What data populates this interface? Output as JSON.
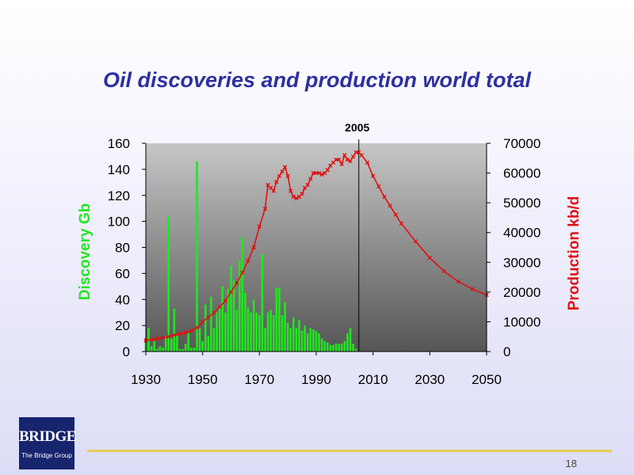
{
  "slide": {
    "title": "Oil discoveries and production world total",
    "page_number": "18",
    "logo_text": "BRIDGE",
    "logo_subtext": "The Bridge Group"
  },
  "colors": {
    "discovery": "#22e622",
    "production": "#e01010",
    "title": "#2e30a0",
    "footer_line": "#e5cc54",
    "plot_top": "#c6c6c6",
    "plot_bottom": "#555555"
  },
  "chart_data": {
    "type": "bar+line",
    "title": "",
    "xlabel": "",
    "xlim": [
      1930,
      2050
    ],
    "x_ticks": [
      1930,
      1950,
      1970,
      1990,
      2010,
      2030,
      2050
    ],
    "marker": {
      "x": 2005,
      "label": "2005"
    },
    "y_left": {
      "label": "Discovery Gb",
      "ylim": [
        0,
        160
      ],
      "ticks": [
        0,
        20,
        40,
        60,
        80,
        100,
        120,
        140,
        160
      ]
    },
    "y_right": {
      "label": "Production kb/d",
      "ylim": [
        0,
        70000
      ],
      "ticks": [
        0,
        10000,
        20000,
        30000,
        40000,
        50000,
        60000,
        70000
      ]
    },
    "series": [
      {
        "name": "Discovery Gb",
        "kind": "bar",
        "axis": "left",
        "x": [
          1930,
          1931,
          1932,
          1933,
          1934,
          1935,
          1936,
          1937,
          1938,
          1939,
          1940,
          1941,
          1942,
          1943,
          1944,
          1945,
          1946,
          1947,
          1948,
          1949,
          1950,
          1951,
          1952,
          1953,
          1954,
          1955,
          1956,
          1957,
          1958,
          1959,
          1960,
          1961,
          1962,
          1963,
          1964,
          1965,
          1966,
          1967,
          1968,
          1969,
          1970,
          1971,
          1972,
          1973,
          1974,
          1975,
          1976,
          1977,
          1978,
          1979,
          1980,
          1981,
          1982,
          1983,
          1984,
          1985,
          1986,
          1987,
          1988,
          1989,
          1990,
          1991,
          1992,
          1993,
          1994,
          1995,
          1996,
          1997,
          1998,
          1999,
          2000,
          2001,
          2002,
          2003,
          2004
        ],
        "values": [
          10,
          18,
          4,
          8,
          2,
          4,
          3,
          12,
          104,
          10,
          33,
          12,
          2,
          2,
          6,
          14,
          3,
          3,
          146,
          18,
          8,
          36,
          12,
          42,
          18,
          30,
          35,
          50,
          30,
          48,
          66,
          55,
          32,
          70,
          88,
          45,
          34,
          30,
          40,
          30,
          28,
          75,
          18,
          30,
          32,
          28,
          49,
          49,
          28,
          38,
          22,
          18,
          26,
          18,
          24,
          16,
          20,
          14,
          18,
          17,
          16,
          14,
          10,
          8,
          7,
          5,
          5,
          6,
          6,
          6,
          8,
          14,
          18,
          6,
          2
        ]
      },
      {
        "name": "Production kb/d",
        "kind": "line",
        "axis": "right",
        "x": [
          1930,
          1932,
          1934,
          1936,
          1938,
          1940,
          1942,
          1944,
          1946,
          1948,
          1950,
          1952,
          1954,
          1956,
          1958,
          1960,
          1962,
          1964,
          1966,
          1968,
          1970,
          1972,
          1973,
          1974,
          1975,
          1976,
          1977,
          1978,
          1979,
          1980,
          1981,
          1982,
          1983,
          1984,
          1985,
          1986,
          1987,
          1988,
          1989,
          1990,
          1991,
          1992,
          1993,
          1994,
          1995,
          1996,
          1997,
          1998,
          1999,
          2000,
          2001,
          2002,
          2003,
          2004,
          2005,
          2006,
          2008,
          2010,
          2012,
          2014,
          2016,
          2018,
          2020,
          2025,
          2030,
          2035,
          2040,
          2045,
          2050
        ],
        "values": [
          3700,
          4000,
          4300,
          4600,
          5000,
          5500,
          5900,
          6300,
          7000,
          8000,
          10000,
          11500,
          13000,
          15000,
          17000,
          20000,
          23000,
          26500,
          30500,
          35000,
          42000,
          48000,
          56000,
          55000,
          54000,
          57000,
          59000,
          60500,
          62000,
          59000,
          54000,
          52000,
          51500,
          52000,
          53000,
          55000,
          56000,
          58000,
          60000,
          60000,
          60000,
          59500,
          60000,
          61000,
          62500,
          63500,
          64500,
          64500,
          63000,
          66000,
          64500,
          64000,
          65500,
          67000,
          67000,
          66000,
          63500,
          59000,
          55500,
          52000,
          49000,
          46000,
          43000,
          37000,
          31500,
          27000,
          23500,
          21000,
          19000
        ]
      }
    ]
  }
}
